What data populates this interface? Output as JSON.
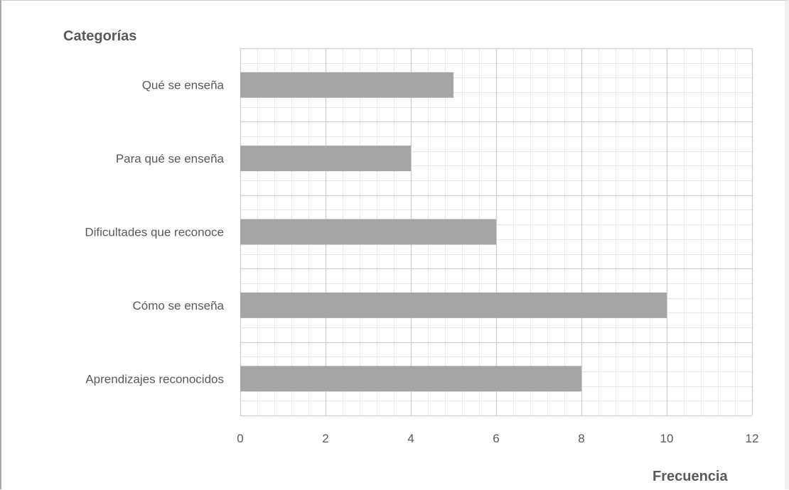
{
  "chart_data": {
    "type": "bar",
    "orientation": "horizontal",
    "ylabel": "Categorías",
    "xlabel": "Frecuencia",
    "categories": [
      "Qué se enseña",
      "Para qué se enseña",
      "Dificultades que reconoce",
      "Cómo se enseña",
      "Aprendizajes reconocidos"
    ],
    "values": [
      5,
      4,
      6,
      10,
      8
    ],
    "xlim": [
      0,
      12
    ],
    "xticks": [
      "0",
      "2",
      "4",
      "6",
      "8",
      "10",
      "12"
    ],
    "grid": "major and minor",
    "bar_color": "#a5a5a5"
  }
}
